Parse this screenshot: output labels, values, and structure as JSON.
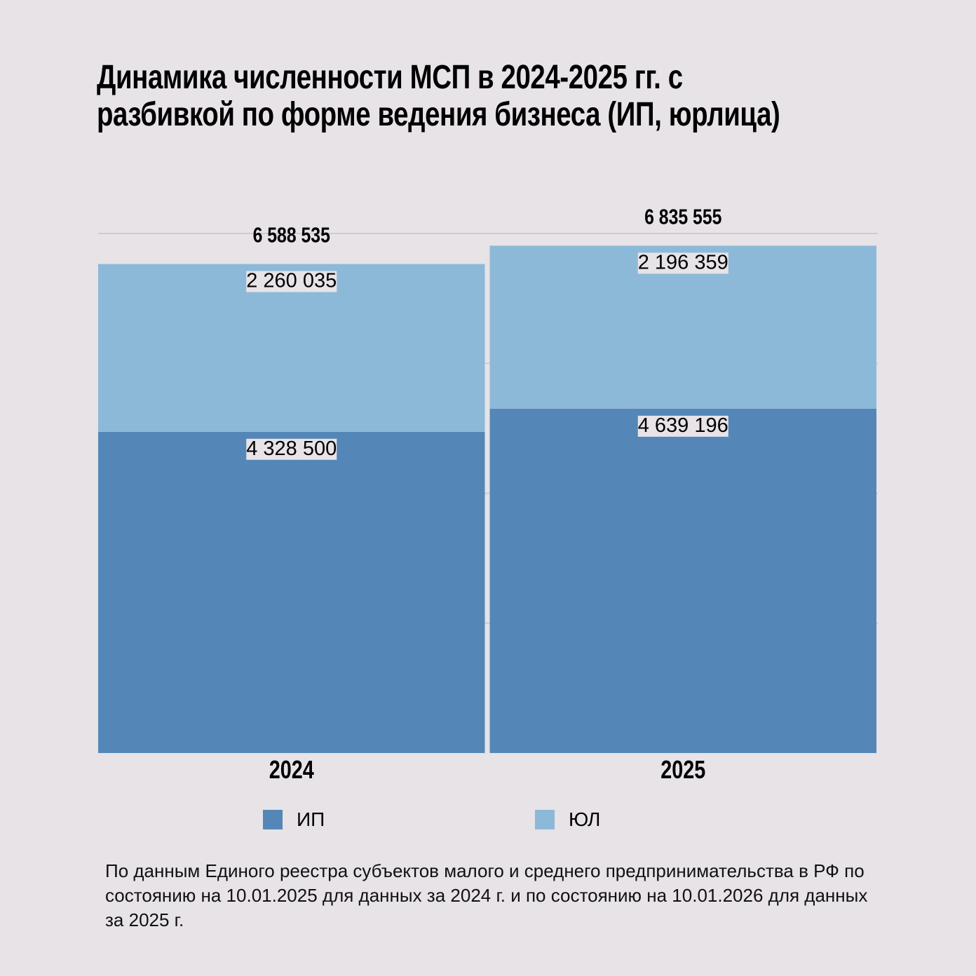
{
  "title": "Динамика численности МСП в 2024-2025 гг. с разбивкой по форме ведения бизнеса (ИП, юрлица)",
  "source": "По данным Единого реестра субъектов малого и среднего предпринимательства в РФ по состоянию на 10.01.2025 для данных за 2024 г. и по состоянию на 10.01.2026 для данных за 2025 г.",
  "colors": {
    "background": "#e7e3e7",
    "ip": "#5487b8",
    "ul": "#8db9d9",
    "grid": "#cfcbcf"
  },
  "chart_data": {
    "type": "bar",
    "stacked": true,
    "categories": [
      "2024",
      "2025"
    ],
    "series": [
      {
        "name": "ИП",
        "values": [
          4328500,
          4639196
        ],
        "labels": [
          "4 328 500",
          "4 639 196"
        ],
        "color": "#5487b8"
      },
      {
        "name": "ЮЛ",
        "values": [
          2260035,
          2196359
        ],
        "labels": [
          "2 260 035",
          "2 196 359"
        ],
        "color": "#8db9d9"
      }
    ],
    "totals": [
      6588535,
      6835555
    ],
    "total_labels": [
      "6 588 535",
      "6 835 555"
    ],
    "ylim": [
      0,
      7000000
    ],
    "yticks": [
      0,
      1750000,
      3500000,
      5250000,
      7000000
    ],
    "grid": true,
    "legend": "bottom"
  }
}
